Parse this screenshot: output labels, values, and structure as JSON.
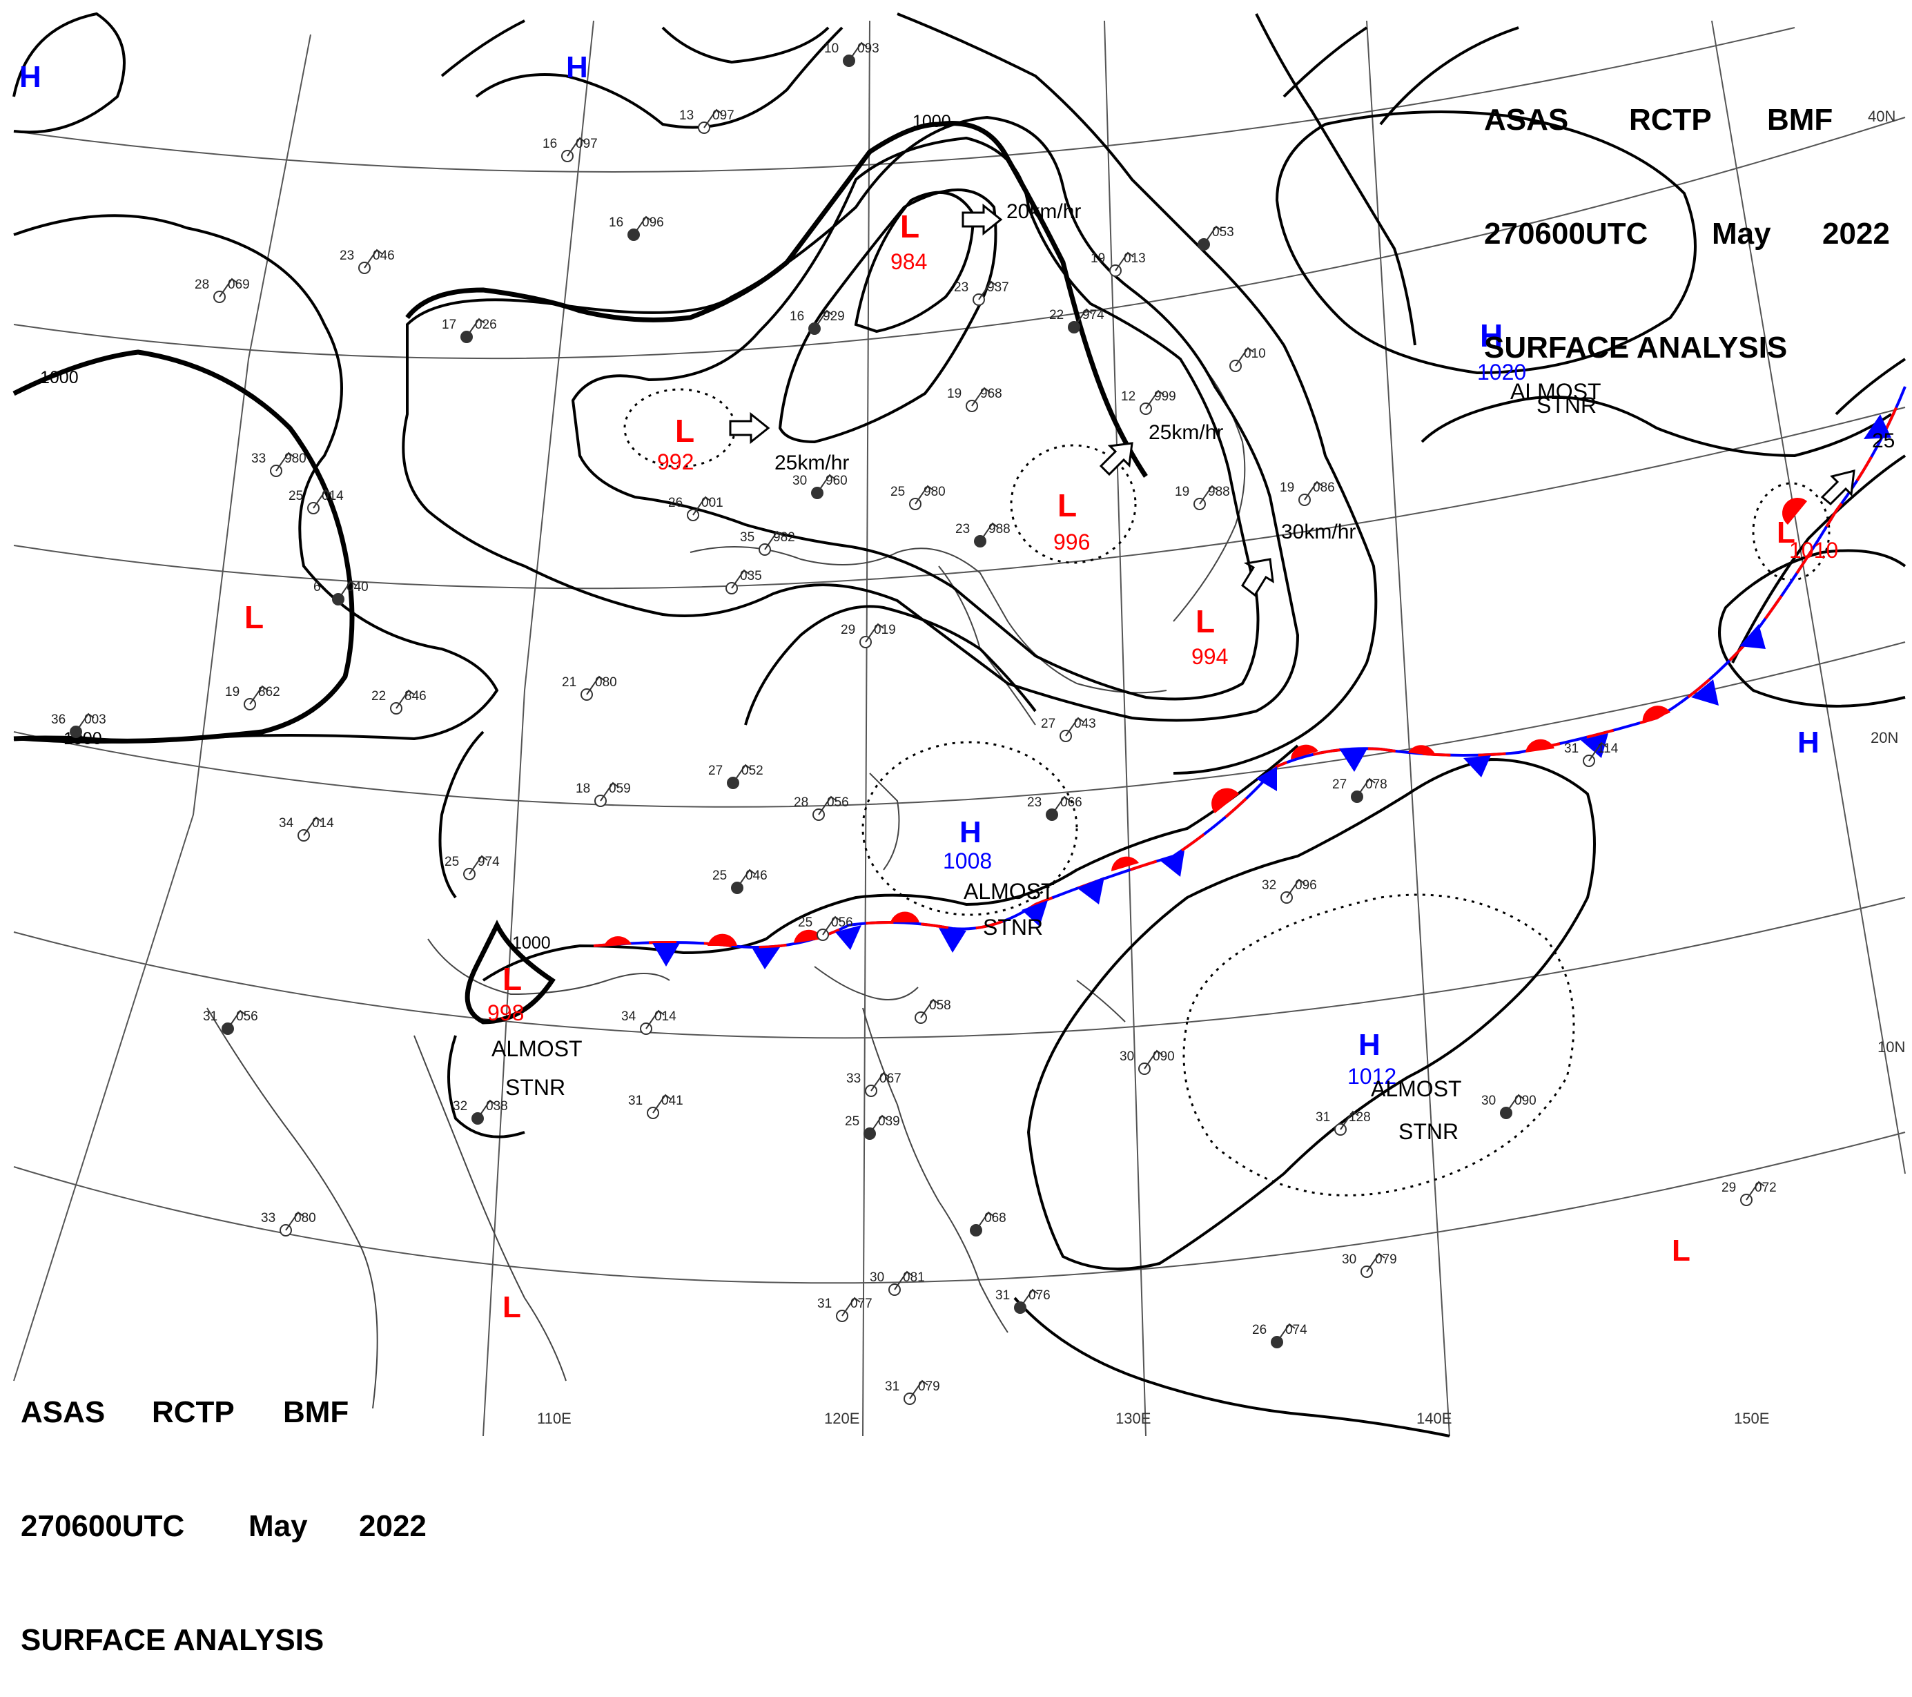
{
  "header": {
    "row1": [
      "ASAS",
      "RCTP",
      "BMF"
    ],
    "row2": [
      "270600UTC",
      "May",
      "2022"
    ],
    "row3": "SURFACE ANALYSIS"
  },
  "colors": {
    "low": "#ff0000",
    "high": "#0000ff",
    "isobar": "#000000",
    "grid": "#555555"
  },
  "lat_labels": [
    "40N",
    "20N",
    "10N"
  ],
  "lon_labels": [
    "110E",
    "120E",
    "130E",
    "140E",
    "150E"
  ],
  "isobar_labels": [
    "1000",
    "1000",
    "1000",
    "1000"
  ],
  "pressure_centers": [
    {
      "type": "H",
      "value": ""
    },
    {
      "type": "H",
      "value": ""
    },
    {
      "type": "L",
      "value": "984"
    },
    {
      "type": "L",
      "value": "992"
    },
    {
      "type": "L",
      "value": "996"
    },
    {
      "type": "L",
      "value": "994"
    },
    {
      "type": "L",
      "value": ""
    },
    {
      "type": "H",
      "value": "1020"
    },
    {
      "type": "L",
      "value": "1010"
    },
    {
      "type": "H",
      "value": ""
    },
    {
      "type": "H",
      "value": "1008"
    },
    {
      "type": "L",
      "value": "998"
    },
    {
      "type": "H",
      "value": "1012"
    },
    {
      "type": "L",
      "value": ""
    },
    {
      "type": "L",
      "value": ""
    }
  ],
  "motion_labels": [
    "20km/hr",
    "25km/hr",
    "25km/hr",
    "30km/hr",
    "25"
  ],
  "status_labels": [
    [
      "ALMOST",
      "STNR"
    ],
    [
      "ALMOST",
      "STNR"
    ],
    [
      "ALMOST",
      "STNR"
    ],
    [
      "ALMOST",
      "STNR"
    ]
  ],
  "stations": [
    {
      "t": "10",
      "p": "093"
    },
    {
      "t": "13",
      "p": "097"
    },
    {
      "t": "16",
      "p": "097"
    },
    {
      "t": "16",
      "p": "096"
    },
    {
      "t": "23",
      "p": "046"
    },
    {
      "t": "28",
      "p": "069"
    },
    {
      "t": "17",
      "p": "026"
    },
    {
      "t": "33",
      "p": "980"
    },
    {
      "t": "25",
      "p": "014"
    },
    {
      "t": "6",
      "p": "040"
    },
    {
      "t": "19",
      "p": "862"
    },
    {
      "t": "22",
      "p": "846"
    },
    {
      "t": "36",
      "p": "003"
    },
    {
      "t": "26",
      "p": "001"
    },
    {
      "t": "35",
      "p": "982"
    },
    {
      "t": "30",
      "p": "960"
    },
    {
      "t": "25",
      "p": "980"
    },
    {
      "t": "19",
      "p": "968"
    },
    {
      "t": "16",
      "p": "929"
    },
    {
      "t": "23",
      "p": "937"
    },
    {
      "t": "19",
      "p": "013"
    },
    {
      "t": "22",
      "p": "974"
    },
    {
      "t": "19",
      "p": "988"
    },
    {
      "t": "19",
      "p": "086"
    },
    {
      "t": "23",
      "p": "988"
    },
    {
      "t": "29",
      "p": "019"
    },
    {
      "t": "21",
      "p": "080"
    },
    {
      "t": "27",
      "p": "052"
    },
    {
      "t": "18",
      "p": "059"
    },
    {
      "t": "28",
      "p": "056"
    },
    {
      "t": "23",
      "p": "066"
    },
    {
      "t": "34",
      "p": "014"
    },
    {
      "t": "25",
      "p": "974"
    },
    {
      "t": "25",
      "p": "046"
    },
    {
      "t": "25",
      "p": "056"
    },
    {
      "t": "27",
      "p": "043"
    },
    {
      "t": "27",
      "p": "078"
    },
    {
      "t": "31",
      "p": "114"
    },
    {
      "t": "32",
      "p": "096"
    },
    {
      "t": "31",
      "p": "056"
    },
    {
      "t": "34",
      "p": "014"
    },
    {
      "t": "31",
      "p": "041"
    },
    {
      "t": "32",
      "p": "038"
    },
    {
      "t": "33",
      "p": "080"
    },
    {
      "t": "33",
      "p": "067"
    },
    {
      "t": "25",
      "p": "039"
    },
    {
      "t": "30",
      "p": "090"
    },
    {
      "t": "31",
      "p": "128"
    },
    {
      "t": "30",
      "p": "090"
    },
    {
      "t": "29",
      "p": "072"
    },
    {
      "t": "30",
      "p": "079"
    },
    {
      "t": "26",
      "p": "074"
    },
    {
      "t": "31",
      "p": "077"
    },
    {
      "t": "30",
      "p": "081"
    },
    {
      "t": "31",
      "p": "076"
    },
    {
      "t": "31",
      "p": "079"
    },
    {
      "t": "",
      "p": "058"
    },
    {
      "t": "",
      "p": "068"
    },
    {
      "t": "12",
      "p": "999"
    },
    {
      "t": "",
      "p": "010"
    },
    {
      "t": "",
      "p": "053"
    },
    {
      "t": "",
      "p": "035"
    }
  ]
}
